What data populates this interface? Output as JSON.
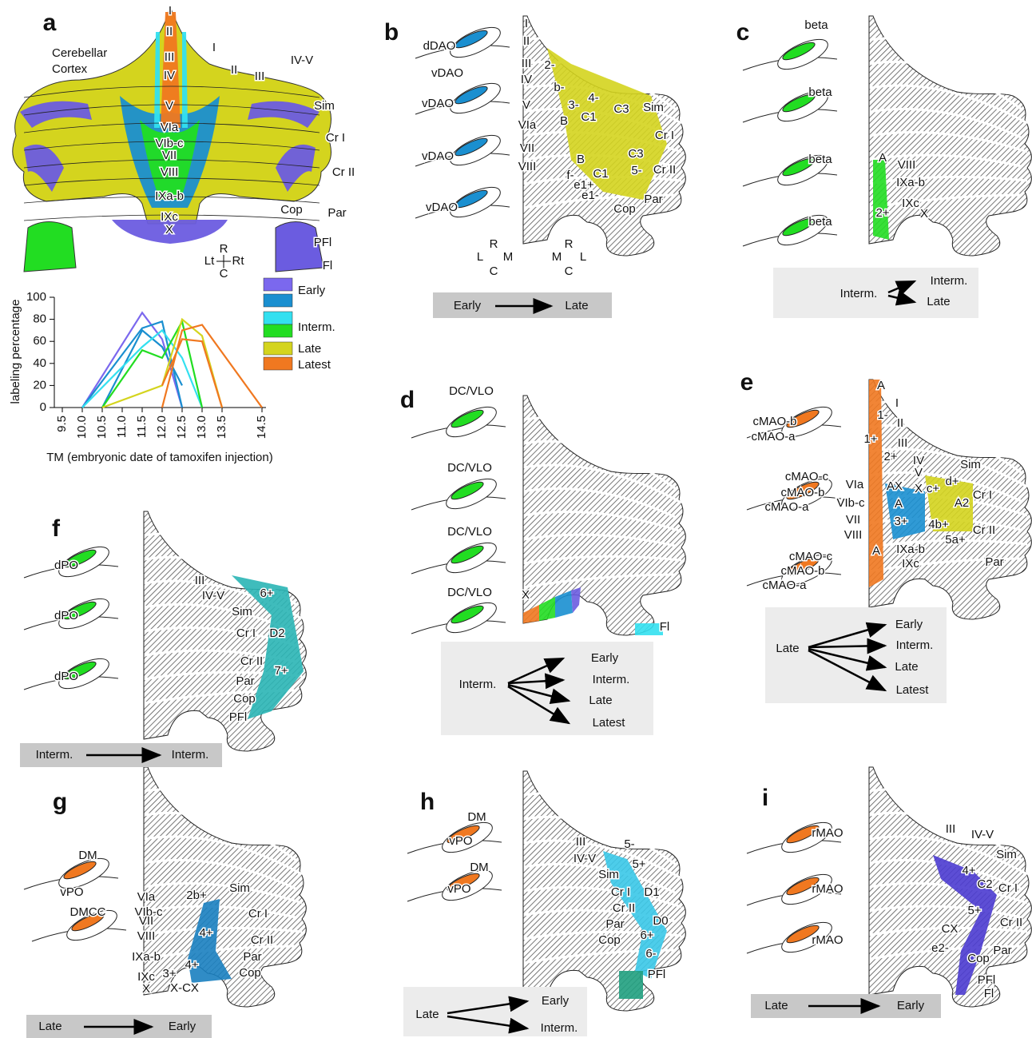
{
  "chart_data": {
    "type": "line",
    "ylabel": "labeling percentage",
    "xlabel": "TM (embryonic date of tamoxifen injection)",
    "xlim": [
      9.5,
      14.5
    ],
    "ylim": [
      0,
      100
    ],
    "xticks": [
      9.5,
      {
        "value": 10,
        "label": "10.0"
      },
      10.5,
      {
        "value": 11,
        "label": "11.0"
      },
      11.5,
      {
        "value": 12,
        "label": "12.0"
      },
      12.5,
      {
        "value": 13,
        "label": "13.0"
      },
      13.5,
      14.5
    ],
    "yticks": [
      0,
      20,
      40,
      60,
      80,
      100
    ],
    "series": [
      {
        "color": "#7b68ee",
        "x": [
          10.0,
          11.5,
          12.0,
          12.5
        ],
        "values": [
          0,
          86,
          62,
          0
        ]
      },
      {
        "color": "#1a8fd0",
        "x": [
          10.0,
          11.5,
          12.0,
          12.5
        ],
        "values": [
          0,
          72,
          78,
          0
        ]
      },
      {
        "color": "#1a8fd0",
        "x": [
          10.5,
          11.5,
          12.0,
          12.5
        ],
        "values": [
          0,
          70,
          55,
          20
        ]
      },
      {
        "color": "#33e0f0",
        "x": [
          10.0,
          11.5,
          12.0,
          12.5,
          13.0
        ],
        "values": [
          0,
          55,
          70,
          45,
          0
        ]
      },
      {
        "color": "#22dd22",
        "x": [
          10.5,
          11.5,
          12.0,
          12.5,
          13.0
        ],
        "values": [
          0,
          52,
          45,
          78,
          0
        ]
      },
      {
        "color": "#d4d41e",
        "x": [
          10.5,
          12.0,
          12.5,
          13.0,
          13.5
        ],
        "values": [
          0,
          20,
          80,
          65,
          0
        ]
      },
      {
        "color": "#f07820",
        "x": [
          12.0,
          12.5,
          13.0,
          14.5
        ],
        "values": [
          0,
          70,
          75,
          0
        ]
      },
      {
        "color": "#f07820",
        "x": [
          12.0,
          12.5,
          13.0,
          13.5
        ],
        "values": [
          20,
          62,
          60,
          0
        ]
      }
    ],
    "legend": [
      {
        "name": "Early",
        "colors": [
          "#7b68ee",
          "#1a8fd0"
        ]
      },
      {
        "name": "Interm.",
        "colors": [
          "#33e0f0",
          "#22dd22"
        ]
      },
      {
        "name": "Late",
        "colors": [
          "#d4d41e"
        ]
      },
      {
        "name": "Latest",
        "colors": [
          "#f07820"
        ]
      }
    ]
  },
  "panels": [
    {
      "letter": "a",
      "labels": [
        "Cerebellar",
        "Cortex",
        "I",
        "II",
        "III",
        "IV",
        "V",
        "VIa",
        "VIb-c",
        "VII",
        "VIII",
        "IXa-b",
        "IXc",
        "X",
        "I",
        "II",
        "III",
        "IV-V",
        "Sim",
        "Cr I",
        "Cr II",
        "Cop",
        "Par",
        "PFl",
        "Fl",
        "R",
        "Lt",
        "Rt",
        "C"
      ]
    },
    {
      "letter": "b",
      "labels": [
        "dDAO",
        "vDAO",
        "vDAO",
        "vDAO",
        "vDAO",
        "I",
        "II",
        "III",
        "IV",
        "V",
        "VIa",
        "VII",
        "VIII",
        "2-",
        "b-",
        "3-",
        "4-",
        "C3",
        "Sim",
        "B",
        "C1",
        "Cr I",
        "C3",
        "B",
        "f-",
        "C1",
        "5-",
        "Cr II",
        "e1+",
        "e1-",
        "Par",
        "Cop",
        "R",
        "L",
        "M",
        "C",
        "R",
        "M",
        "L",
        "C"
      ],
      "flow": {
        "from": "Early",
        "to": [
          "Late"
        ]
      }
    },
    {
      "letter": "c",
      "labels": [
        "beta",
        "beta",
        "beta",
        "beta",
        "A",
        "VIII",
        "IXa-b",
        "IXc",
        "X",
        "2+"
      ],
      "flow": {
        "from": "Interm.",
        "to": [
          "Interm.",
          "Late"
        ]
      }
    },
    {
      "letter": "d",
      "labels": [
        "DC/VLO",
        "DC/VLO",
        "DC/VLO",
        "DC/VLO",
        "X",
        "Fl"
      ],
      "flow": {
        "from": "Interm.",
        "to": [
          "Early",
          "Interm.",
          "Late",
          "Latest"
        ]
      }
    },
    {
      "letter": "e",
      "labels": [
        "cMAO-b",
        "cMAO-a",
        "cMAO-c",
        "cMAO-b",
        "cMAO-a",
        "cMAO-c",
        "cMAO-b",
        "cMAO-a",
        "A",
        "I",
        "1-",
        "II",
        "1+",
        "III",
        "2+",
        "IV",
        "V",
        "Sim",
        "VIa",
        "AX",
        "X",
        "c+",
        "d+",
        "VIb-c",
        "A",
        "A2",
        "Cr I",
        "VII",
        "3+",
        "4b+",
        "VIII",
        "5a+",
        "Cr II",
        "A",
        "IXa-b",
        "IXc",
        "Par"
      ],
      "flow": {
        "from": "Late",
        "to": [
          "Early",
          "Interm.",
          "Late",
          "Latest"
        ]
      }
    },
    {
      "letter": "f",
      "labels": [
        "dPO",
        "dPO",
        "dPO",
        "III",
        "IV-V",
        "6+",
        "Sim",
        "Cr I",
        "D2",
        "Cr II",
        "7+",
        "Par",
        "Cop",
        "PFl"
      ],
      "flow": {
        "from": "Interm.",
        "to": [
          "Interm."
        ]
      }
    },
    {
      "letter": "g",
      "labels": [
        "DM",
        "vPO",
        "DMCC",
        "VIa",
        "2b+",
        "VIb-c",
        "Sim",
        "VII",
        "Cr I",
        "VIII",
        "4+",
        "Cr II",
        "IXa-b",
        "Par",
        "4+",
        "3+",
        "IXc",
        "Cop",
        "X",
        "X-CX"
      ],
      "flow": {
        "from": "Late",
        "to": [
          "Early"
        ]
      }
    },
    {
      "letter": "h",
      "labels": [
        "DM",
        "vPO",
        "DM",
        "vPO",
        "III",
        "5-",
        "IV-V",
        "5+",
        "Sim",
        "Cr I",
        "D1",
        "Cr II",
        "D0",
        "Par",
        "6+",
        "Cop",
        "6-",
        "PFl"
      ],
      "flow": {
        "from": "Late",
        "to": [
          "Early",
          "Interm."
        ]
      }
    },
    {
      "letter": "i",
      "labels": [
        "rMAO",
        "rMAO",
        "rMAO",
        "III",
        "IV-V",
        "Sim",
        "4+",
        "C2",
        "Cr I",
        "5+",
        "Cr II",
        "CX",
        "e2-",
        "Par",
        "Cop",
        "PFl",
        "Fl"
      ],
      "flow": {
        "from": "Late",
        "to": [
          "Early"
        ]
      }
    }
  ]
}
